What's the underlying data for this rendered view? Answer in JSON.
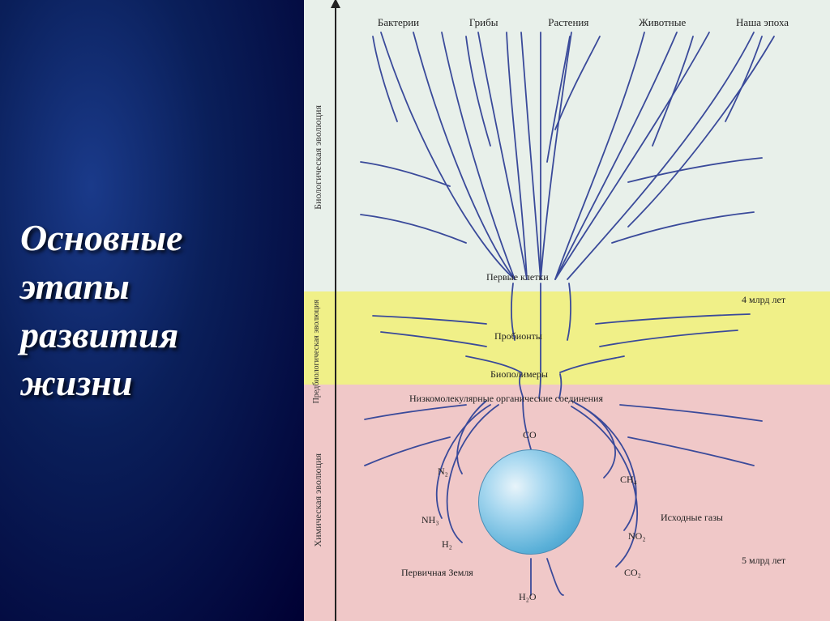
{
  "title_lines": [
    "Основные",
    "этапы",
    "развития",
    "жизни"
  ],
  "zones": {
    "bio": {
      "color": "#e8f0ea",
      "label": "Биологическая эволюция"
    },
    "prebio": {
      "color": "#f0f088",
      "label": "Предбиологическая эволюция"
    },
    "chem": {
      "color": "#f0c8c8",
      "label": "Химическая эволюция"
    }
  },
  "top_labels": [
    "Бактерии",
    "Грибы",
    "Растения",
    "Животные",
    "Наша эпоха"
  ],
  "mid_labels": {
    "first_cells": "Первые клетки",
    "probionts": "Пробионты",
    "biopolymers": "Биополимеры",
    "low_mol": "Низкомолекулярные органические соединения",
    "prim_earth": "Первичная Земля",
    "src_gases": "Исходные газы"
  },
  "time_labels": {
    "four_bya": "4 млрд лет",
    "five_bya": "5 млрд лет"
  },
  "gases": {
    "co": "CO",
    "n2": "N₂",
    "nh3": "NH₃",
    "h2": "H₂",
    "h2o": "H₂O",
    "ch4": "CH₄",
    "no2": "NO₂",
    "co2": "CO₂"
  },
  "branch_color": "#3a4a9a",
  "branch_width": 1.8,
  "fonts": {
    "title_size": 46,
    "label_size": 12,
    "top_label_size": 13
  }
}
